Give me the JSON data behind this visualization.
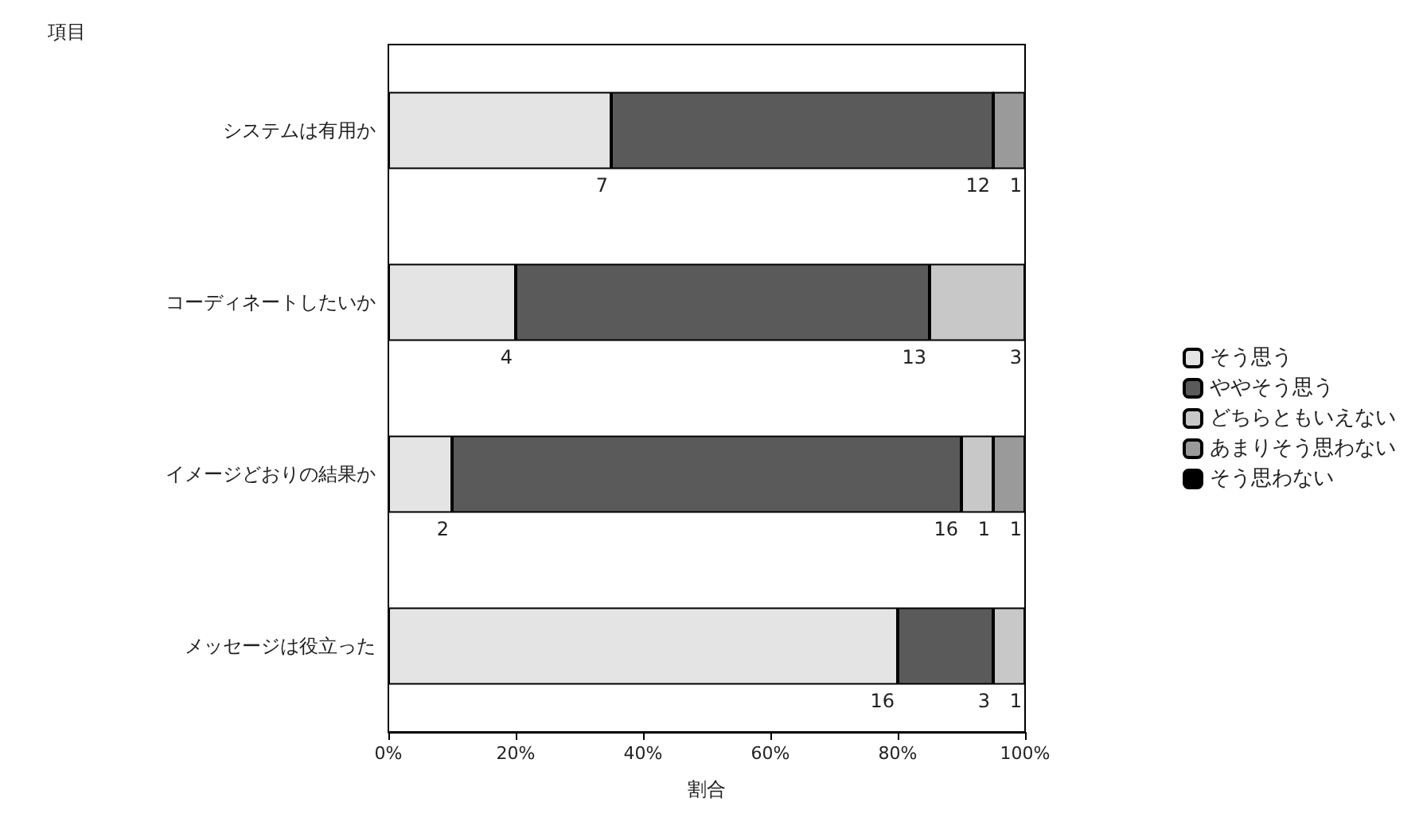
{
  "chart_data": {
    "type": "bar",
    "orientation": "horizontal",
    "stacked": true,
    "xlabel": "割合",
    "ylabel": "項目",
    "categories": [
      "システムは有用か",
      "コーディネートしたいか",
      "イメージどおりの結果か",
      "メッセージは役立った"
    ],
    "series": [
      {
        "name": "そう思う",
        "color": "#e4e4e4",
        "values": [
          35,
          20,
          10,
          80
        ]
      },
      {
        "name": "ややそう思う",
        "color": "#5a5a5a",
        "values": [
          60,
          65,
          80,
          15
        ]
      },
      {
        "name": "どちらともいえない",
        "color": "#c8c8c8",
        "values": [
          0,
          15,
          5,
          5
        ]
      },
      {
        "name": "あまりそう思わない",
        "color": "#9a9a9a",
        "values": [
          5,
          0,
          5,
          0
        ]
      },
      {
        "name": "そう思わない",
        "color": "#000000",
        "values": [
          0,
          0,
          0,
          0
        ]
      }
    ],
    "annotations": [
      {
        "text": "7",
        "x": 35,
        "y": "システムは有用か"
      },
      {
        "text": "12",
        "x": 95,
        "y": "システムは有用か"
      },
      {
        "text": "1",
        "x": 100,
        "y": "システムは有用か"
      },
      {
        "text": "4",
        "x": 20,
        "y": "コーディネートしたいか"
      },
      {
        "text": "13",
        "x": 85,
        "y": "コーディネートしたいか"
      },
      {
        "text": "3",
        "x": 100,
        "y": "コーディネートしたいか"
      },
      {
        "text": "2",
        "x": 10,
        "y": "イメージどおりの結果か"
      },
      {
        "text": "16",
        "x": 90,
        "y": "イメージどおりの結果か"
      },
      {
        "text": "1",
        "x": 95,
        "y": "イメージどおりの結果か"
      },
      {
        "text": "1",
        "x": 100,
        "y": "イメージどおりの結果か"
      },
      {
        "text": "16",
        "x": 80,
        "y": "メッセージは役立った"
      },
      {
        "text": "3",
        "x": 95,
        "y": "メッセージは役立った"
      },
      {
        "text": "1",
        "x": 100,
        "y": "メッセージは役立った"
      }
    ],
    "xlim": [
      0,
      100
    ],
    "xticks": [
      {
        "value": 0,
        "label": "0%"
      },
      {
        "value": 20,
        "label": "20%"
      },
      {
        "value": 40,
        "label": "40%"
      },
      {
        "value": 60,
        "label": "60%"
      },
      {
        "value": 80,
        "label": "80%"
      },
      {
        "value": 100,
        "label": "100%"
      }
    ],
    "grid": false,
    "legend": "right"
  }
}
